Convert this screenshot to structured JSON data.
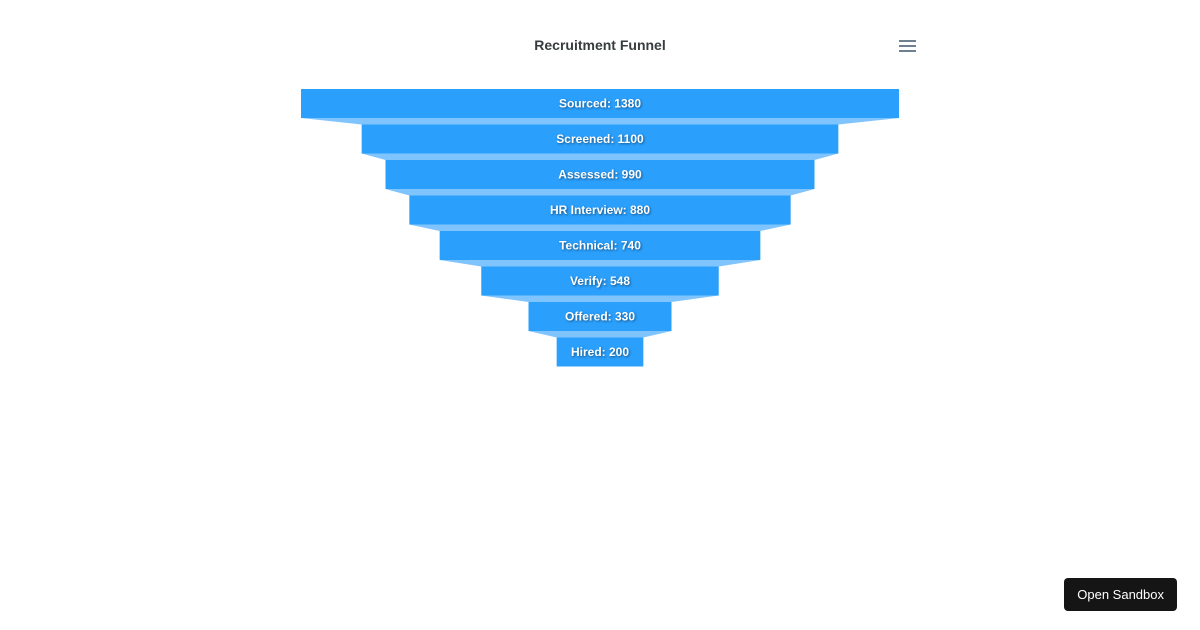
{
  "chart_data": {
    "type": "funnel",
    "title": "Recruitment Funnel",
    "categories": [
      "Sourced",
      "Screened",
      "Assessed",
      "HR Interview",
      "Technical",
      "Verify",
      "Offered",
      "Hired"
    ],
    "values": [
      1380,
      1100,
      990,
      880,
      740,
      548,
      330,
      200
    ],
    "labels": [
      "Sourced: 1380",
      "Screened: 1100",
      "Assessed: 990",
      "HR Interview: 880",
      "Technical: 740",
      "Verify: 548",
      "Offered: 330",
      "Hired: 200"
    ],
    "colors": {
      "bar": "#2a9ffc",
      "connector": "#80c4fe"
    }
  },
  "toolbar": {
    "menu_icon": "hamburger-menu-icon"
  },
  "sandbox_label": "Open Sandbox"
}
